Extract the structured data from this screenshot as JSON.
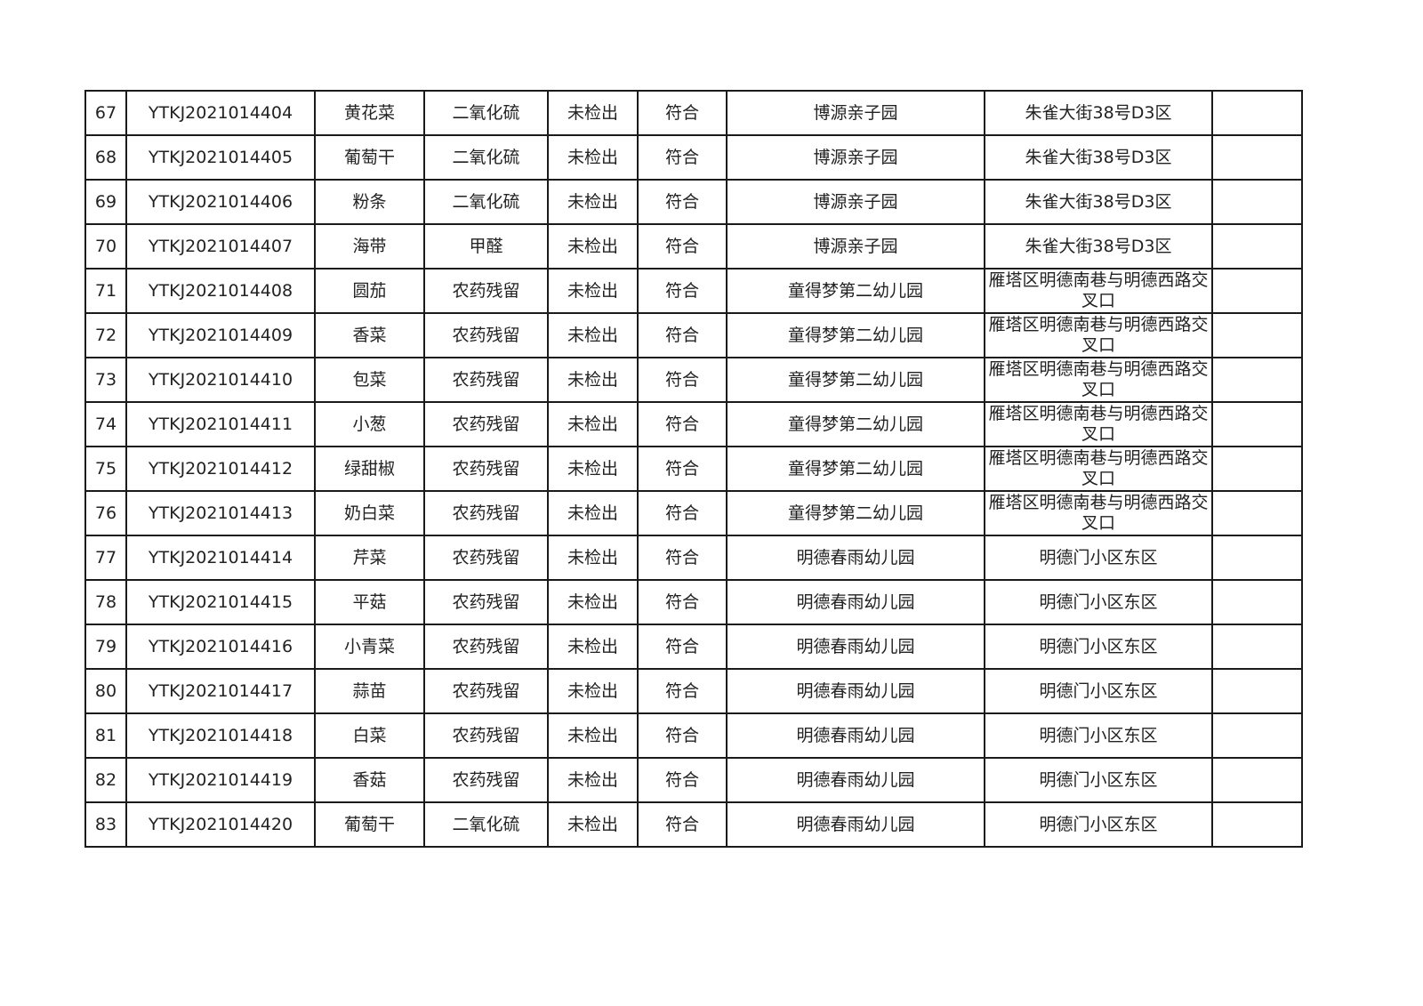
{
  "table": {
    "rows": [
      [
        "67",
        "YTKJ2021014404",
        "黄花菜",
        "二氧化硫",
        "未检出",
        "符合",
        "博源亲子园",
        "朱雀大街38号D3区",
        ""
      ],
      [
        "68",
        "YTKJ2021014405",
        "葡萄干",
        "二氧化硫",
        "未检出",
        "符合",
        "博源亲子园",
        "朱雀大街38号D3区",
        ""
      ],
      [
        "69",
        "YTKJ2021014406",
        "粉条",
        "二氧化硫",
        "未检出",
        "符合",
        "博源亲子园",
        "朱雀大街38号D3区",
        ""
      ],
      [
        "70",
        "YTKJ2021014407",
        "海带",
        "甲醛",
        "未检出",
        "符合",
        "博源亲子园",
        "朱雀大街38号D3区",
        ""
      ],
      [
        "71",
        "YTKJ2021014408",
        "圆茄",
        "农药残留",
        "未检出",
        "符合",
        "童得梦第二幼儿园",
        "雁塔区明德南巷与明德西路交叉口",
        ""
      ],
      [
        "72",
        "YTKJ2021014409",
        "香菜",
        "农药残留",
        "未检出",
        "符合",
        "童得梦第二幼儿园",
        "雁塔区明德南巷与明德西路交叉口",
        ""
      ],
      [
        "73",
        "YTKJ2021014410",
        "包菜",
        "农药残留",
        "未检出",
        "符合",
        "童得梦第二幼儿园",
        "雁塔区明德南巷与明德西路交叉口",
        ""
      ],
      [
        "74",
        "YTKJ2021014411",
        "小葱",
        "农药残留",
        "未检出",
        "符合",
        "童得梦第二幼儿园",
        "雁塔区明德南巷与明德西路交叉口",
        ""
      ],
      [
        "75",
        "YTKJ2021014412",
        "绿甜椒",
        "农药残留",
        "未检出",
        "符合",
        "童得梦第二幼儿园",
        "雁塔区明德南巷与明德西路交叉口",
        ""
      ],
      [
        "76",
        "YTKJ2021014413",
        "奶白菜",
        "农药残留",
        "未检出",
        "符合",
        "童得梦第二幼儿园",
        "雁塔区明德南巷与明德西路交叉口",
        ""
      ],
      [
        "77",
        "YTKJ2021014414",
        "芹菜",
        "农药残留",
        "未检出",
        "符合",
        "明德春雨幼儿园",
        "明德门小区东区",
        ""
      ],
      [
        "78",
        "YTKJ2021014415",
        "平菇",
        "农药残留",
        "未检出",
        "符合",
        "明德春雨幼儿园",
        "明德门小区东区",
        ""
      ],
      [
        "79",
        "YTKJ2021014416",
        "小青菜",
        "农药残留",
        "未检出",
        "符合",
        "明德春雨幼儿园",
        "明德门小区东区",
        ""
      ],
      [
        "80",
        "YTKJ2021014417",
        "蒜苗",
        "农药残留",
        "未检出",
        "符合",
        "明德春雨幼儿园",
        "明德门小区东区",
        ""
      ],
      [
        "81",
        "YTKJ2021014418",
        "白菜",
        "农药残留",
        "未检出",
        "符合",
        "明德春雨幼儿园",
        "明德门小区东区",
        ""
      ],
      [
        "82",
        "YTKJ2021014419",
        "香菇",
        "农药残留",
        "未检出",
        "符合",
        "明德春雨幼儿园",
        "明德门小区东区",
        ""
      ],
      [
        "83",
        "YTKJ2021014420",
        "葡萄干",
        "二氧化硫",
        "未检出",
        "符合",
        "明德春雨幼儿园",
        "明德门小区东区",
        ""
      ]
    ]
  }
}
